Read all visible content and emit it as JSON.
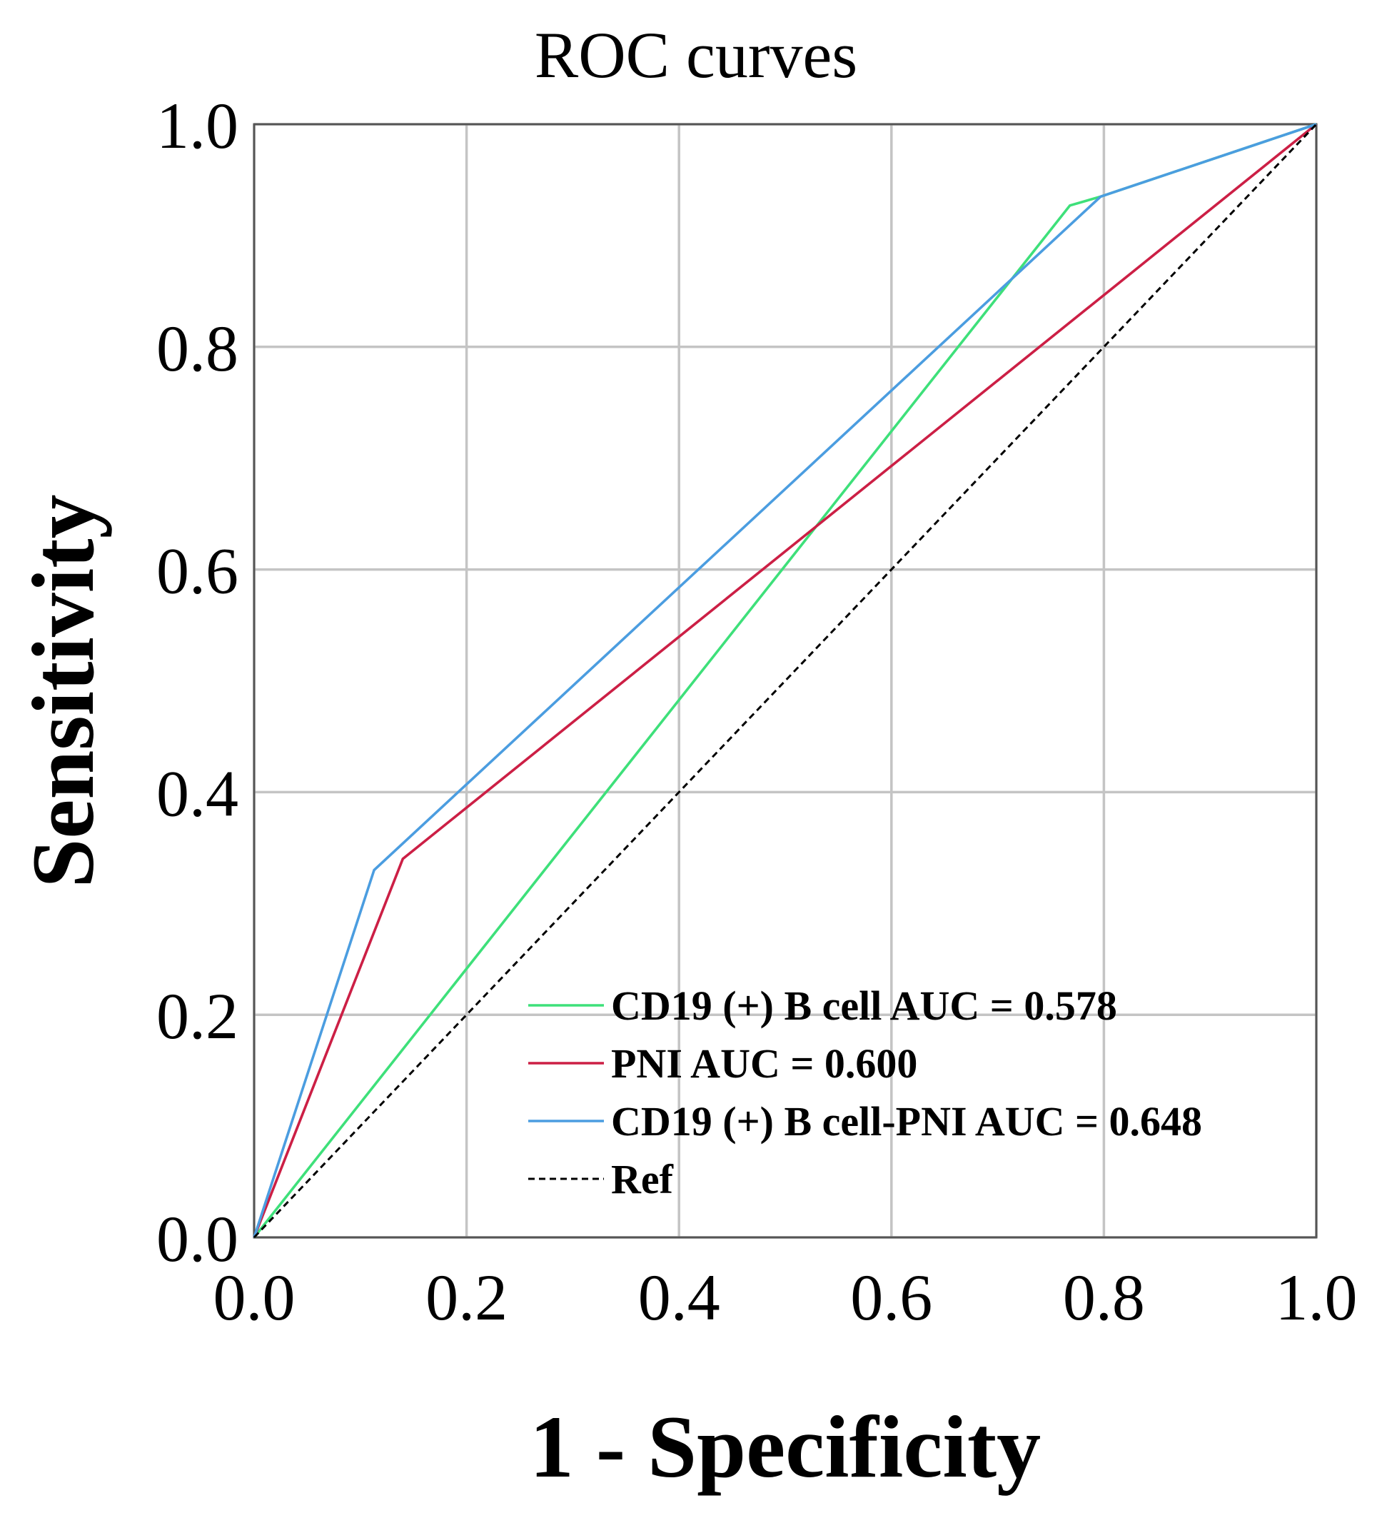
{
  "chart_data": {
    "type": "line",
    "title": "ROC curves",
    "xlabel": "1 - Specificity",
    "ylabel": "Sensitivity",
    "xlim": [
      0,
      1
    ],
    "ylim": [
      0,
      1
    ],
    "grid": true,
    "legend_position": "bottom-right",
    "x_ticks": [
      "0.0",
      "0.2",
      "0.4",
      "0.6",
      "0.8",
      "1.0"
    ],
    "y_ticks": [
      "0.0",
      "0.2",
      "0.4",
      "0.6",
      "0.8",
      "1.0"
    ],
    "series": [
      {
        "name": "CD19 (+) B cell AUC = 0.578",
        "color": "#3ee07a",
        "dashed": false,
        "x": [
          0.0,
          0.768,
          0.797,
          1.0
        ],
        "y": [
          0.0,
          0.927,
          0.935,
          1.0
        ]
      },
      {
        "name": "PNI AUC = 0.600",
        "color": "#cc1f45",
        "dashed": false,
        "x": [
          0.0,
          0.14,
          1.0
        ],
        "y": [
          0.0,
          0.34,
          1.0
        ]
      },
      {
        "name": "CD19 (+) B cell-PNI AUC = 0.648",
        "color": "#4b9de0",
        "dashed": false,
        "x": [
          0.0,
          0.113,
          0.797,
          1.0
        ],
        "y": [
          0.0,
          0.33,
          0.935,
          1.0
        ]
      },
      {
        "name": "Ref",
        "color": "#000000",
        "dashed": true,
        "x": [
          0.0,
          1.0
        ],
        "y": [
          0.0,
          1.0
        ]
      }
    ]
  }
}
